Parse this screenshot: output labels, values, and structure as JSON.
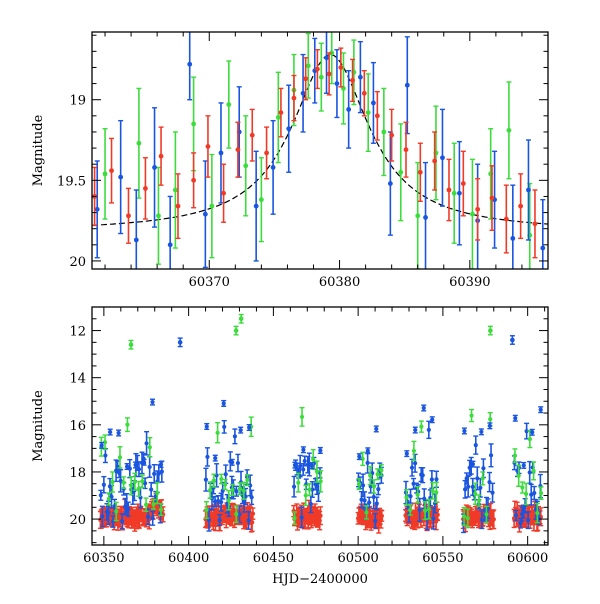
{
  "colors": {
    "green": "#3ddc3d",
    "blue": "#1a55e0",
    "red": "#f03a28",
    "curve": "#000000",
    "axis": "#000000"
  },
  "chart_data": [
    {
      "type": "scatter",
      "panel": "top",
      "title": "",
      "xlabel": "",
      "ylabel": "Magnitude",
      "xlim": [
        60361,
        60396
      ],
      "ylim": [
        20.05,
        18.58
      ],
      "y_inverted": true,
      "xticks_major": [
        60370,
        60380,
        60390
      ],
      "xtick_labels": [
        "60370",
        "60380",
        "60390"
      ],
      "yticks_major": [
        19,
        19.5,
        20
      ],
      "ytick_labels": [
        "19",
        "19.5",
        "20"
      ],
      "series": [
        {
          "color": "green",
          "x": [
            60362.0,
            60364.6,
            60366.1,
            60367.4,
            60368.8,
            60370.2,
            60371.5,
            60372.8,
            60374.0,
            60375.3,
            60376.5,
            60377.6,
            60378.6,
            60379.4,
            60380.3,
            60381.1,
            60382.2,
            60383.4,
            60384.7,
            60386.0,
            60387.4,
            60388.8,
            60390.2,
            60391.6,
            60393.0,
            60394.6
          ],
          "y": [
            19.46,
            19.27,
            19.72,
            19.56,
            19.15,
            19.66,
            19.03,
            19.41,
            19.62,
            19.11,
            18.94,
            18.79,
            18.86,
            18.71,
            18.93,
            18.83,
            19.08,
            19.2,
            19.45,
            19.72,
            19.33,
            19.58,
            19.71,
            19.46,
            19.19,
            19.84
          ],
          "err": [
            0.28,
            0.34,
            0.3,
            0.36,
            0.29,
            0.32,
            0.27,
            0.31,
            0.26,
            0.28,
            0.22,
            0.2,
            0.21,
            0.19,
            0.22,
            0.2,
            0.24,
            0.27,
            0.3,
            0.33,
            0.29,
            0.31,
            0.34,
            0.28,
            0.3,
            0.32
          ]
        },
        {
          "color": "blue",
          "x": [
            60361.4,
            60363.2,
            60364.4,
            60365.8,
            60367.0,
            60368.5,
            60369.7,
            60370.9,
            60372.3,
            60373.6,
            60374.9,
            60376.1,
            60377.2,
            60378.1,
            60379.0,
            60379.8,
            60380.7,
            60381.6,
            60382.6,
            60383.9,
            60385.2,
            60386.6,
            60387.9,
            60389.2,
            60390.6,
            60391.9,
            60393.3,
            60394.5,
            60395.6
          ],
          "y": [
            19.68,
            19.48,
            19.87,
            19.42,
            19.9,
            18.78,
            19.71,
            19.33,
            19.2,
            19.66,
            19.42,
            19.18,
            18.96,
            18.82,
            18.74,
            18.9,
            19.06,
            18.86,
            19.02,
            19.52,
            18.91,
            19.73,
            19.36,
            19.58,
            19.75,
            19.62,
            19.86,
            19.56,
            19.92
          ],
          "err": [
            0.3,
            0.35,
            0.31,
            0.37,
            0.3,
            0.22,
            0.33,
            0.31,
            0.28,
            0.34,
            0.29,
            0.27,
            0.24,
            0.2,
            0.22,
            0.21,
            0.24,
            0.22,
            0.25,
            0.32,
            0.3,
            0.34,
            0.3,
            0.32,
            0.35,
            0.3,
            0.33,
            0.31,
            0.3
          ]
        },
        {
          "color": "red",
          "x": [
            60361.2,
            60362.5,
            60363.8,
            60365.1,
            60366.3,
            60367.6,
            60368.8,
            60369.9,
            60371.1,
            60372.2,
            60373.3,
            60374.4,
            60375.5,
            60376.5,
            60377.4,
            60378.3,
            60379.2,
            60380.1,
            60381.0,
            60381.9,
            60382.9,
            60384.0,
            60385.1,
            60386.2,
            60387.3,
            60388.4,
            60389.5,
            60390.6,
            60391.7,
            60392.8,
            60393.9,
            60395.0
          ],
          "y": [
            19.6,
            19.44,
            19.72,
            19.55,
            19.35,
            19.66,
            19.5,
            19.29,
            19.58,
            19.31,
            19.22,
            19.33,
            19.08,
            18.99,
            18.87,
            18.81,
            18.84,
            18.8,
            18.88,
            18.96,
            19.1,
            19.22,
            19.31,
            19.45,
            19.38,
            19.56,
            19.52,
            19.68,
            19.61,
            19.74,
            19.66,
            19.77
          ],
          "err": [
            0.18,
            0.2,
            0.17,
            0.19,
            0.18,
            0.2,
            0.17,
            0.19,
            0.18,
            0.17,
            0.16,
            0.16,
            0.15,
            0.14,
            0.13,
            0.12,
            0.13,
            0.12,
            0.13,
            0.14,
            0.15,
            0.16,
            0.17,
            0.18,
            0.18,
            0.19,
            0.2,
            0.19,
            0.2,
            0.21,
            0.2,
            0.21
          ]
        }
      ],
      "model_curve": {
        "color": "curve",
        "style": "dashed",
        "baseline": 19.82,
        "peak_mag": 18.72,
        "t0": 60379.3,
        "width": 3.6
      }
    },
    {
      "type": "scatter",
      "panel": "bottom",
      "title": "",
      "xlabel": "HJD−2400000",
      "ylabel": "Magnitude",
      "xlim": [
        60343,
        60612
      ],
      "ylim": [
        21.1,
        11.0
      ],
      "y_inverted": true,
      "xticks_major": [
        60350,
        60400,
        60450,
        60500,
        60550,
        60600
      ],
      "xtick_labels": [
        "60350",
        "60400",
        "60450",
        "60500",
        "60550",
        "60600"
      ],
      "yticks_major": [
        12,
        14,
        16,
        18,
        20
      ],
      "ytick_labels": [
        "12",
        "14",
        "16",
        "18",
        "20"
      ],
      "season_edges": [
        60348,
        60385,
        60410,
        60438,
        60462,
        60478,
        60500,
        60514,
        60528,
        60547,
        60562,
        60580,
        60592,
        60608
      ],
      "baseline_mag": 19.9,
      "outliers": [
        {
          "color": "green",
          "x": [
            60366,
            60428,
            60431,
            60578
          ],
          "y": [
            12.6,
            12.0,
            11.5,
            12.0
          ]
        },
        {
          "color": "blue",
          "x": [
            60395,
            60591
          ],
          "y": [
            12.5,
            12.4
          ]
        }
      ]
    }
  ]
}
